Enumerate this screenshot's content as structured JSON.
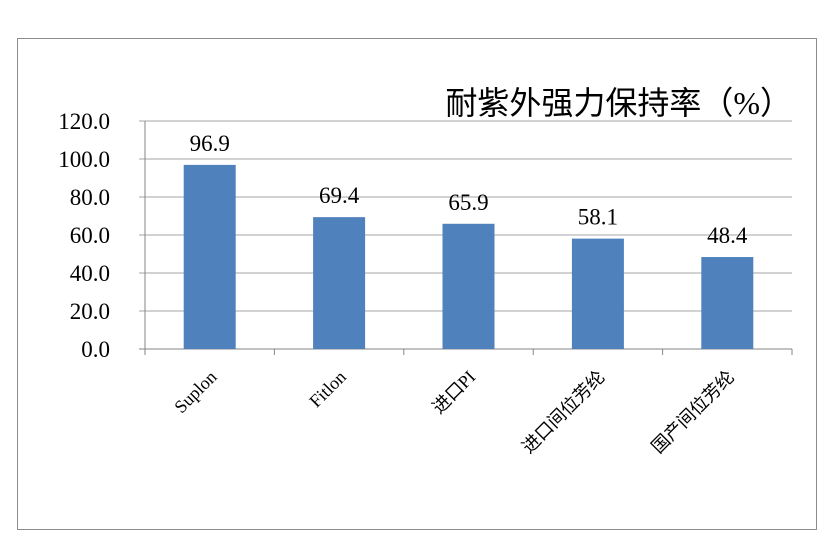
{
  "chart_data": {
    "type": "bar",
    "title": "耐紫外强力保持率（%）",
    "categories": [
      "Suplon",
      "Fitlon",
      "进口PI",
      "进口间位芳纶",
      "国产间位芳纶"
    ],
    "values": [
      96.9,
      69.4,
      65.9,
      58.1,
      48.4
    ],
    "data_labels": [
      "96.9",
      "69.4",
      "65.9",
      "58.1",
      "48.4"
    ],
    "y_ticks": [
      "0.0",
      "20.0",
      "40.0",
      "60.0",
      "80.0",
      "100.0",
      "120.0"
    ],
    "ylim": [
      0,
      120
    ],
    "xlabel": "",
    "ylabel": "",
    "grid": true,
    "legend": "none",
    "bar_color": "#4f81bd",
    "grid_color": "#a6a6a6"
  }
}
